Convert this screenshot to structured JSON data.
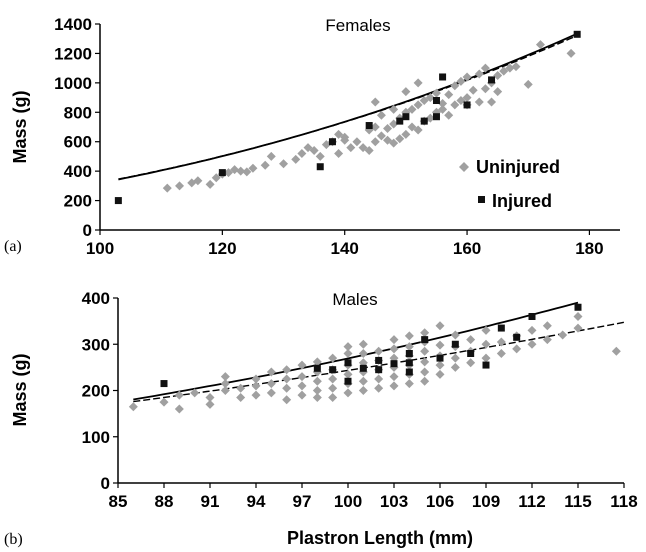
{
  "chart_data": [
    {
      "type": "scatter",
      "panel_label": "(a)",
      "title": "Females",
      "ylabel": "Mass (g)",
      "xlim": [
        100,
        185
      ],
      "ylim": [
        0,
        1400
      ],
      "xticks": [
        100,
        120,
        140,
        160,
        180
      ],
      "yticks": [
        0,
        200,
        400,
        600,
        800,
        1000,
        1200,
        1400
      ],
      "legend_position": "right-lower",
      "series": [
        {
          "name": "Uninjured",
          "marker": "diamond",
          "color": "#a0a0a0",
          "points": [
            [
              111,
              285
            ],
            [
              113,
              300
            ],
            [
              115,
              320
            ],
            [
              116,
              335
            ],
            [
              118,
              310
            ],
            [
              119,
              355
            ],
            [
              120,
              380
            ],
            [
              121,
              390
            ],
            [
              122,
              410
            ],
            [
              123,
              400
            ],
            [
              124,
              395
            ],
            [
              125,
              420
            ],
            [
              127,
              440
            ],
            [
              128,
              500
            ],
            [
              130,
              450
            ],
            [
              132,
              480
            ],
            [
              133,
              520
            ],
            [
              134,
              560
            ],
            [
              135,
              540
            ],
            [
              136,
              500
            ],
            [
              137,
              580
            ],
            [
              138,
              600
            ],
            [
              139,
              520
            ],
            [
              139,
              650
            ],
            [
              140,
              610
            ],
            [
              140,
              630
            ],
            [
              141,
              560
            ],
            [
              142,
              600
            ],
            [
              143,
              560
            ],
            [
              144,
              540
            ],
            [
              144,
              680
            ],
            [
              145,
              600
            ],
            [
              145,
              700
            ],
            [
              145,
              870
            ],
            [
              146,
              640
            ],
            [
              146,
              780
            ],
            [
              147,
              610
            ],
            [
              147,
              690
            ],
            [
              148,
              590
            ],
            [
              148,
              720
            ],
            [
              148,
              820
            ],
            [
              149,
              620
            ],
            [
              149,
              760
            ],
            [
              150,
              650
            ],
            [
              150,
              800
            ],
            [
              150,
              940
            ],
            [
              151,
              700
            ],
            [
              151,
              820
            ],
            [
              152,
              680
            ],
            [
              152,
              850
            ],
            [
              152,
              1000
            ],
            [
              153,
              740
            ],
            [
              153,
              880
            ],
            [
              154,
              760
            ],
            [
              154,
              900
            ],
            [
              155,
              800
            ],
            [
              155,
              930
            ],
            [
              156,
              820
            ],
            [
              156,
              860
            ],
            [
              157,
              780
            ],
            [
              157,
              920
            ],
            [
              158,
              850
            ],
            [
              158,
              980
            ],
            [
              159,
              880
            ],
            [
              159,
              1010
            ],
            [
              160,
              900
            ],
            [
              160,
              1040
            ],
            [
              160,
              850
            ],
            [
              161,
              950
            ],
            [
              162,
              1060
            ],
            [
              162,
              870
            ],
            [
              163,
              960
            ],
            [
              163,
              1100
            ],
            [
              164,
              1000
            ],
            [
              164,
              870
            ],
            [
              165,
              1050
            ],
            [
              165,
              940
            ],
            [
              166,
              1080
            ],
            [
              167,
              1100
            ],
            [
              168,
              1110
            ],
            [
              170,
              990
            ],
            [
              172,
              1260
            ],
            [
              177,
              1200
            ]
          ]
        },
        {
          "name": "Injured",
          "marker": "square",
          "color": "#111111",
          "points": [
            [
              103,
              200
            ],
            [
              120,
              390
            ],
            [
              136,
              430
            ],
            [
              138,
              600
            ],
            [
              144,
              710
            ],
            [
              149,
              740
            ],
            [
              150,
              770
            ],
            [
              153,
              740
            ],
            [
              155,
              770
            ],
            [
              155,
              880
            ],
            [
              156,
              1040
            ],
            [
              160,
              850
            ],
            [
              164,
              1020
            ],
            [
              178,
              1330
            ]
          ]
        }
      ],
      "fits": [
        {
          "series": "Uninjured",
          "style": "dashed",
          "x": [
            103,
            178
          ],
          "a": 0.00405,
          "b": 2.45
        },
        {
          "series": "Injured",
          "style": "solid",
          "x": [
            103,
            178
          ],
          "a": 0.0035,
          "b": 2.48
        }
      ]
    },
    {
      "type": "scatter",
      "panel_label": "(b)",
      "title": "Males",
      "xlabel": "Plastron Length (mm)",
      "ylabel": "Mass (g)",
      "xlim": [
        85,
        118
      ],
      "ylim": [
        0,
        400
      ],
      "xticks": [
        85,
        88,
        91,
        94,
        97,
        100,
        103,
        106,
        109,
        112,
        115,
        118
      ],
      "yticks": [
        0,
        100,
        200,
        300,
        400
      ],
      "series": [
        {
          "name": "Uninjured",
          "marker": "diamond",
          "color": "#a0a0a0",
          "points": [
            [
              86,
              165
            ],
            [
              88,
              175
            ],
            [
              89,
              160
            ],
            [
              89,
              190
            ],
            [
              90,
              195
            ],
            [
              91,
              170
            ],
            [
              91,
              185
            ],
            [
              92,
              200
            ],
            [
              92,
              215
            ],
            [
              92,
              230
            ],
            [
              93,
              185
            ],
            [
              93,
              205
            ],
            [
              94,
              190
            ],
            [
              94,
              210
            ],
            [
              94,
              225
            ],
            [
              95,
              195
            ],
            [
              95,
              215
            ],
            [
              95,
              240
            ],
            [
              96,
              180
            ],
            [
              96,
              205
            ],
            [
              96,
              225
            ],
            [
              96,
              245
            ],
            [
              97,
              190
            ],
            [
              97,
              210
            ],
            [
              97,
              230
            ],
            [
              97,
              255
            ],
            [
              98,
              185
            ],
            [
              98,
              200
            ],
            [
              98,
              220
            ],
            [
              98,
              240
            ],
            [
              98,
              262
            ],
            [
              99,
              185
            ],
            [
              99,
              205
            ],
            [
              99,
              225
            ],
            [
              99,
              245
            ],
            [
              99,
              270
            ],
            [
              100,
              195
            ],
            [
              100,
              215
            ],
            [
              100,
              235
            ],
            [
              100,
              255
            ],
            [
              100,
              280
            ],
            [
              100,
              295
            ],
            [
              101,
              200
            ],
            [
              101,
              220
            ],
            [
              101,
              240
            ],
            [
              101,
              260
            ],
            [
              101,
              280
            ],
            [
              101,
              300
            ],
            [
              102,
              205
            ],
            [
              102,
              225
            ],
            [
              102,
              245
            ],
            [
              102,
              265
            ],
            [
              102,
              285
            ],
            [
              103,
              210
            ],
            [
              103,
              230
            ],
            [
              103,
              250
            ],
            [
              103,
              270
            ],
            [
              103,
              290
            ],
            [
              103,
              310
            ],
            [
              104,
              215
            ],
            [
              104,
              235
            ],
            [
              104,
              255
            ],
            [
              104,
              275
            ],
            [
              104,
              295
            ],
            [
              104,
              318
            ],
            [
              105,
              220
            ],
            [
              105,
              240
            ],
            [
              105,
              262
            ],
            [
              105,
              285
            ],
            [
              105,
              305
            ],
            [
              105,
              325
            ],
            [
              106,
              235
            ],
            [
              106,
              255
            ],
            [
              106,
              275
            ],
            [
              106,
              298
            ],
            [
              106,
              340
            ],
            [
              107,
              250
            ],
            [
              107,
              270
            ],
            [
              107,
              295
            ],
            [
              107,
              320
            ],
            [
              108,
              260
            ],
            [
              108,
              285
            ],
            [
              108,
              310
            ],
            [
              109,
              270
            ],
            [
              109,
              300
            ],
            [
              109,
              330
            ],
            [
              110,
              280
            ],
            [
              110,
              305
            ],
            [
              111,
              290
            ],
            [
              111,
              318
            ],
            [
              112,
              300
            ],
            [
              112,
              330
            ],
            [
              113,
              310
            ],
            [
              113,
              340
            ],
            [
              114,
              320
            ],
            [
              115,
              335
            ],
            [
              115,
              360
            ],
            [
              117.5,
              285
            ]
          ]
        },
        {
          "name": "Injured",
          "marker": "square",
          "color": "#111111",
          "points": [
            [
              88,
              215
            ],
            [
              98,
              248
            ],
            [
              99,
              245
            ],
            [
              100,
              220
            ],
            [
              100,
              260
            ],
            [
              101,
              248
            ],
            [
              102,
              245
            ],
            [
              102,
              265
            ],
            [
              103,
              258
            ],
            [
              104,
              240
            ],
            [
              104,
              260
            ],
            [
              104,
              280
            ],
            [
              105,
              310
            ],
            [
              106,
              270
            ],
            [
              107,
              300
            ],
            [
              108,
              280
            ],
            [
              109,
              255
            ],
            [
              110,
              335
            ],
            [
              111,
              315
            ],
            [
              112,
              360
            ],
            [
              115,
              380
            ]
          ]
        }
      ],
      "fits": [
        {
          "series": "Uninjured",
          "style": "dashed",
          "x": [
            86,
            118
          ],
          "a": 0.0122,
          "b": 2.15
        },
        {
          "series": "Injured",
          "style": "solid",
          "x": [
            86,
            115
          ],
          "a": 0.00135,
          "b": 2.65
        }
      ]
    }
  ]
}
